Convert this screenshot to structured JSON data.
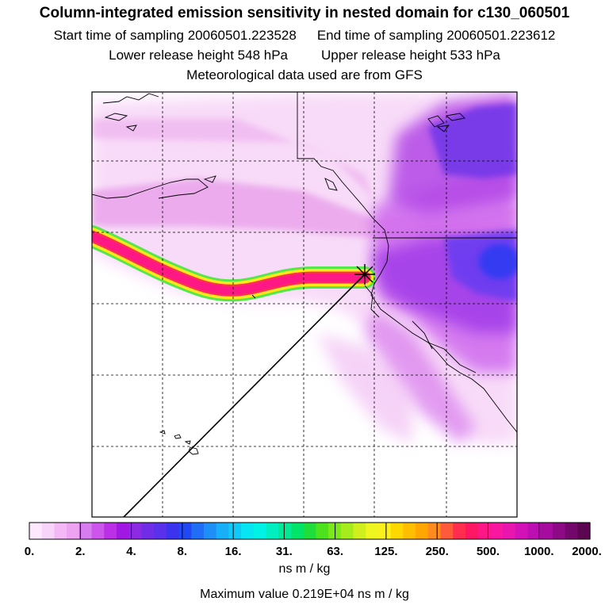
{
  "header": {
    "title": "Column-integrated emission sensitivity in nested domain for c130_060501",
    "start_label": "Start time of sampling 20060501.223528",
    "end_label": "End time of sampling 20060501.223612",
    "lower_label": "Lower release height  548 hPa",
    "upper_label": "Upper release height  533 hPa",
    "met_label": "Meteorological data used are from GFS"
  },
  "colorbar": {
    "tick_labels": [
      "0.",
      "2.",
      "4.",
      "8.",
      "16.",
      "31.",
      "63.",
      "125.",
      "250.",
      "500.",
      "1000.",
      "2000."
    ],
    "colors": [
      "#fde8fd",
      "#f9d4fa",
      "#f3b8f5",
      "#eea2f2",
      "#d87df0",
      "#cc55ec",
      "#bb2fe6",
      "#a018e2",
      "#8c2ae4",
      "#6f2de7",
      "#5a30ea",
      "#3b33ee",
      "#2048f3",
      "#1f6ef5",
      "#1d8ff7",
      "#18aef8",
      "#11c9f8",
      "#07e5f2",
      "#00f2e6",
      "#00eec0",
      "#00ea95",
      "#00e46a",
      "#1fdd3a",
      "#4ce21e",
      "#7ae81b",
      "#a6ec1c",
      "#cff01d",
      "#eef51f",
      "#fbf01c",
      "#ffd800",
      "#ffbf00",
      "#ffa700",
      "#ff8a20",
      "#ff5b3b",
      "#ff2e4f",
      "#ff1763",
      "#ff1788",
      "#f8179e",
      "#e815ae",
      "#d212b6",
      "#bc0fb2",
      "#a60d9f",
      "#8d0a86",
      "#73076b",
      "#5c0550"
    ],
    "units": "ns m / kg",
    "max_value": "Maximum value  0.219E+04 ns m / kg"
  },
  "map": {
    "release_marker": "release-point",
    "plume_path_label": "trajectory"
  }
}
